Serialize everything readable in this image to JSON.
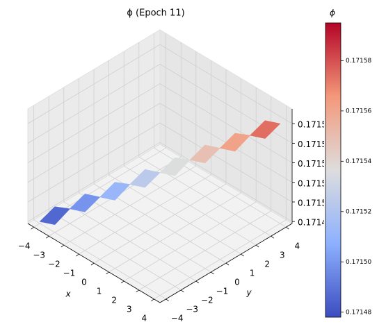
{
  "chart_data": {
    "type": "surface3d",
    "title": "ϕ (Epoch 11)",
    "x_label": "x",
    "y_label": "y",
    "x": [
      -4,
      -3,
      -2,
      -1,
      0,
      1,
      2,
      3,
      4
    ],
    "y": [
      -4,
      -3,
      -2,
      -1,
      0,
      1,
      2,
      3,
      4
    ],
    "z": [
      [
        0.17148,
        0.171486,
        null,
        null,
        null,
        null,
        null,
        null,
        null
      ],
      [
        0.171486,
        0.171493,
        0.171499,
        null,
        null,
        null,
        null,
        null,
        null
      ],
      [
        null,
        0.171499,
        0.171505,
        0.171511,
        null,
        null,
        null,
        null,
        null
      ],
      [
        null,
        null,
        0.171511,
        0.171518,
        0.171524,
        null,
        null,
        null,
        null
      ],
      [
        null,
        null,
        null,
        0.171524,
        0.17153,
        0.171536,
        null,
        null,
        null
      ],
      [
        null,
        null,
        null,
        null,
        0.171536,
        0.171543,
        0.171549,
        null,
        null
      ],
      [
        null,
        null,
        null,
        null,
        null,
        0.171549,
        0.171555,
        0.171561,
        null
      ],
      [
        null,
        null,
        null,
        null,
        null,
        null,
        0.171561,
        0.171568,
        0.171574
      ],
      [
        null,
        null,
        null,
        null,
        null,
        null,
        null,
        0.171574,
        0.17158
      ]
    ],
    "xlim": [
      -4.4,
      4.4
    ],
    "ylim": [
      -4.4,
      4.4
    ],
    "zlim": [
      0.171478,
      0.171595
    ],
    "xticks": [
      {
        "value": -4,
        "label": "−4"
      },
      {
        "value": -3,
        "label": "−3"
      },
      {
        "value": -2,
        "label": "−2"
      },
      {
        "value": -1,
        "label": "−1"
      },
      0,
      1,
      2,
      3,
      4
    ],
    "yticks": [
      {
        "value": -4,
        "label": "−4"
      },
      {
        "value": -3,
        "label": "−3"
      },
      {
        "value": -2,
        "label": "−2"
      },
      {
        "value": -1,
        "label": "−1"
      },
      0,
      1,
      2,
      3,
      4
    ],
    "zticks": [
      0.17148,
      {
        "value": 0.1715,
        "label": "0.17150"
      },
      0.17152,
      0.17154,
      0.17156,
      0.17158
    ],
    "colormap": "coolwarm",
    "clim": [
      0.171478,
      0.171595
    ],
    "grid": true,
    "colorbar": {
      "title": "ϕ",
      "ticks": [
        0.17148,
        {
          "value": 0.1715,
          "label": "0.17150"
        },
        0.17152,
        0.17154,
        0.17156,
        0.17158
      ]
    }
  }
}
